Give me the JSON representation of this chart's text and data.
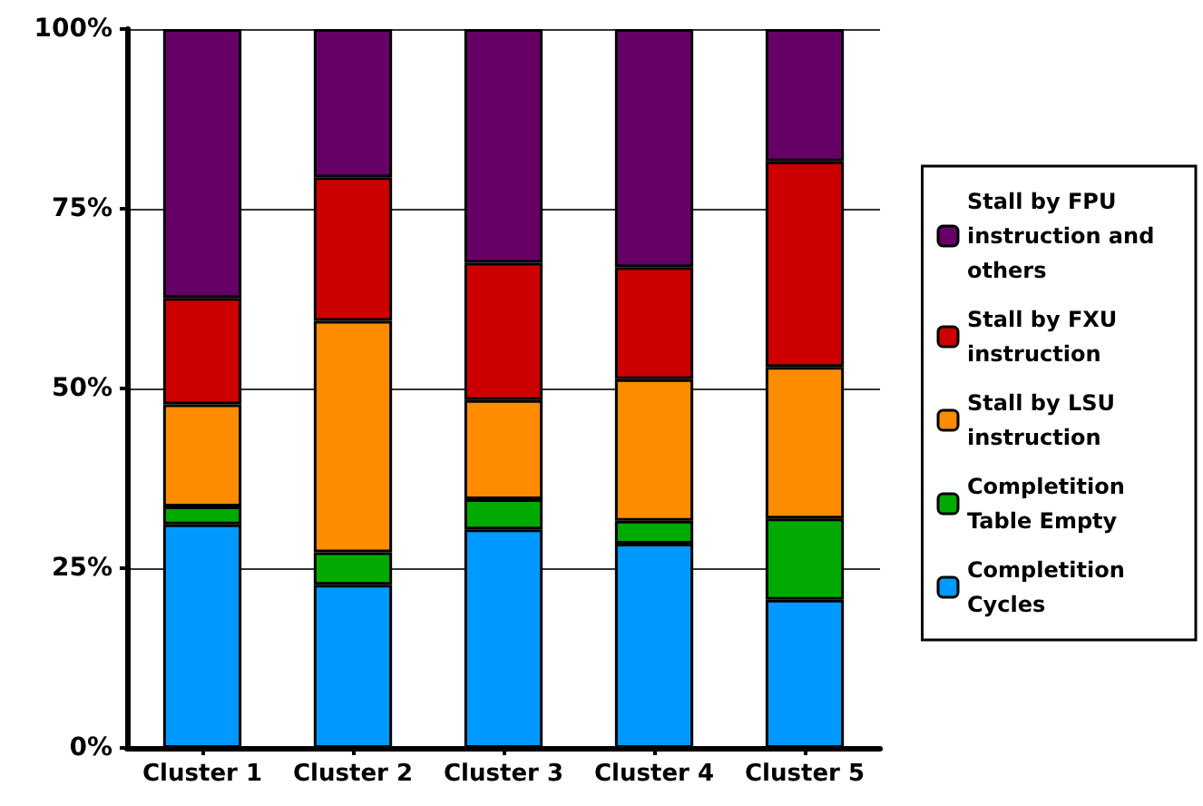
{
  "chart_data": {
    "type": "bar",
    "stacked": true,
    "categories": [
      "Cluster 1",
      "Cluster 2",
      "Cluster 3",
      "Cluster 4",
      "Cluster 5"
    ],
    "series": [
      {
        "name": "Completition Cycles",
        "color": "#0099ff",
        "values": [
          31.1,
          22.7,
          30.4,
          28.4,
          20.6
        ]
      },
      {
        "name": "Completition Table Empty",
        "color": "#00aa00",
        "values": [
          2.5,
          4.5,
          4.2,
          3.2,
          11.3
        ]
      },
      {
        "name": "Stall by LSU instruction",
        "color": "#ff8c00",
        "values": [
          14.2,
          32.2,
          13.8,
          19.7,
          21.1
        ]
      },
      {
        "name": "Stall by FXU instruction",
        "color": "#cc0000",
        "values": [
          14.8,
          20.0,
          19.1,
          15.6,
          28.6
        ]
      },
      {
        "name": "Stall by FPU instruction and others",
        "color": "#660066",
        "values": [
          37.4,
          20.6,
          32.5,
          33.1,
          18.4
        ]
      }
    ],
    "ylim": [
      0,
      100
    ],
    "yticks": [
      {
        "value": 0,
        "label": "0%"
      },
      {
        "value": 25,
        "label": "25%"
      },
      {
        "value": 50,
        "label": "50%"
      },
      {
        "value": 75,
        "label": "75%"
      },
      {
        "value": 100,
        "label": "100%"
      }
    ],
    "grid": "y",
    "legend": "right"
  }
}
